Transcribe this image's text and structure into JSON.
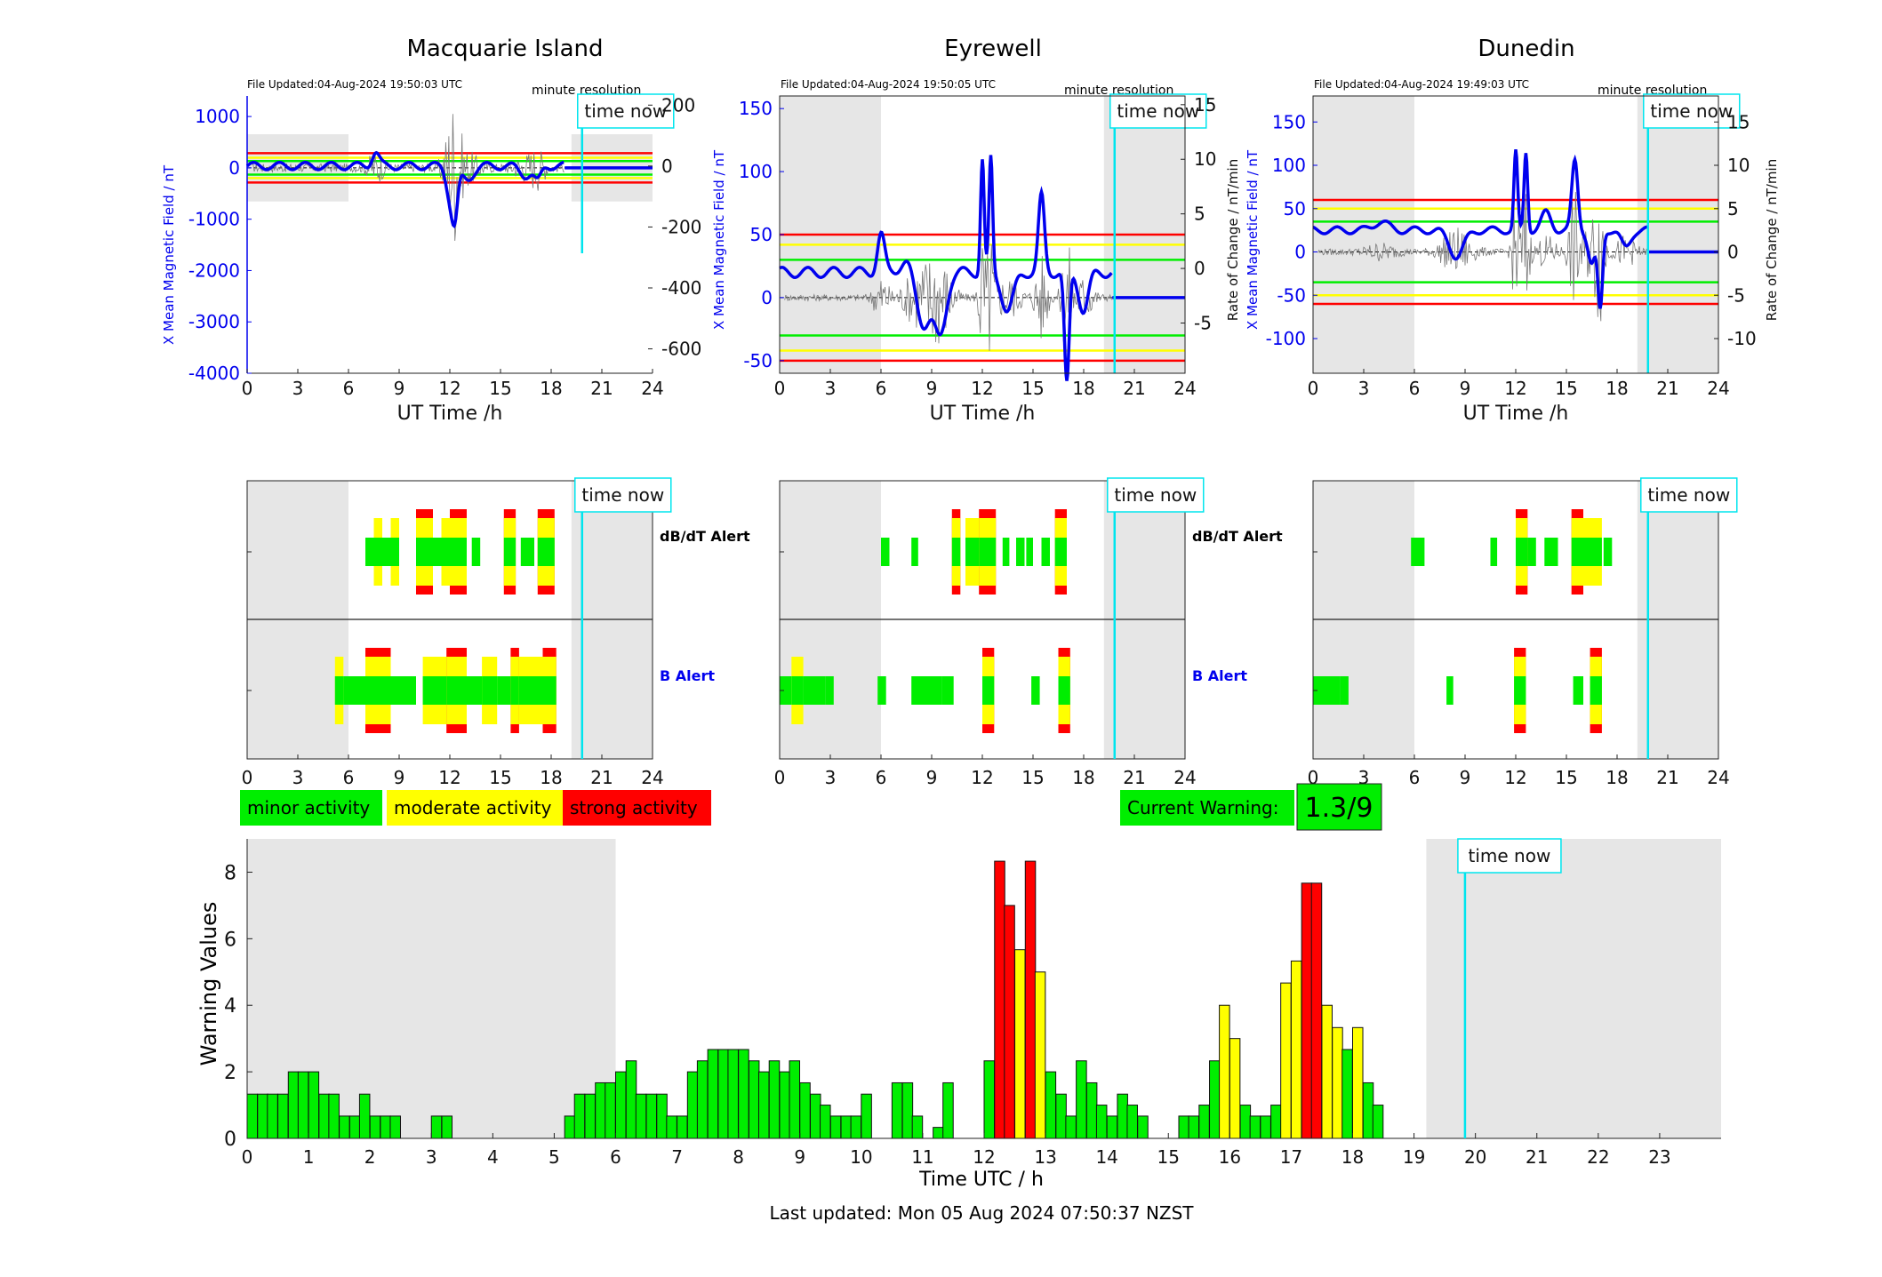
{
  "sites": [
    {
      "name": "Macquarie Island",
      "file_updated": "File Updated:04-Aug-2024 19:50:03 UTC",
      "resolution": "minute resolution",
      "time_now_label": "time now",
      "ylabel_left": "X Mean Magnetic Field / nT",
      "ylabel_right": "",
      "ylim_left": [
        -4000,
        1400
      ],
      "yticks_left": [
        "1000",
        "0",
        "-1000",
        "-2000",
        "-3000",
        "-4000"
      ],
      "ylim_right": [
        -680,
        230
      ],
      "yticks_right": [
        "200",
        "0",
        "-200",
        "-400",
        "-600"
      ],
      "dbdt_alert_label": "dB/dT Alert",
      "b_alert_label": "B Alert",
      "night_shade": [
        [
          0,
          6
        ],
        [
          19.2,
          24
        ]
      ]
    },
    {
      "name": "Eyrewell",
      "file_updated": "File Updated:04-Aug-2024 19:50:05 UTC",
      "resolution": "minute resolution",
      "time_now_label": "time now",
      "ylabel_left": "X Mean Magnetic Field / nT",
      "ylabel_right": "Rate of Change / nT/min",
      "ylim_left": [
        -60,
        160
      ],
      "yticks_left": [
        "150",
        "100",
        "50",
        "0",
        "-50"
      ],
      "ylim_right": [
        -9.6,
        15.8
      ],
      "yticks_right": [
        "15",
        "10",
        "5",
        "0",
        "-5"
      ],
      "dbdt_alert_label": "dB/dT Alert",
      "b_alert_label": "B Alert",
      "night_shade": [
        [
          0,
          6
        ],
        [
          19.2,
          24
        ]
      ]
    },
    {
      "name": "Dunedin",
      "file_updated": "File Updated:04-Aug-2024 19:49:03 UTC",
      "resolution": "minute resolution",
      "time_now_label": "time now",
      "ylabel_left": "X Mean Magnetic Field / nT",
      "ylabel_right": "Rate of Change / nT/min",
      "ylim_left": [
        -140,
        180
      ],
      "yticks_left": [
        "150",
        "100",
        "50",
        "0",
        "-50",
        "-100"
      ],
      "ylim_right": [
        -14,
        18
      ],
      "yticks_right": [
        "15",
        "10",
        "5",
        "0",
        "-5",
        "-10"
      ],
      "dbdt_alert_label": "dB/dT Alert",
      "b_alert_label": "B Alert",
      "night_shade": [
        [
          0,
          6
        ],
        [
          19.2,
          24
        ]
      ]
    }
  ],
  "axes": {
    "site_xticks": [
      "0",
      "3",
      "6",
      "9",
      "12",
      "15",
      "18",
      "21",
      "24"
    ],
    "site_xlabel": "UT Time /h",
    "bottom_xticks": [
      "0",
      "1",
      "2",
      "3",
      "4",
      "5",
      "6",
      "7",
      "8",
      "9",
      "10",
      "11",
      "12",
      "13",
      "14",
      "15",
      "16",
      "17",
      "18",
      "19",
      "20",
      "21",
      "22",
      "23"
    ],
    "bottom_xlabel": "Time UTC / h",
    "bottom_ylabel": "Warning Values",
    "bottom_yticks": [
      "0",
      "2",
      "4",
      "6",
      "8"
    ],
    "time_now_hour": 19.83
  },
  "legend": {
    "minor": "minor activity",
    "moderate": "moderate activity",
    "strong": "strong activity"
  },
  "current_warning": {
    "label": "Current Warning:",
    "value": "1.3/9"
  },
  "last_updated": "Last updated: Mon 05 Aug 2024 07:50:37 NZST",
  "colors": {
    "minor": "#00ee00",
    "moderate": "#ffff00",
    "strong": "#ff0000",
    "night": "#e6e6e6",
    "time_now": "#00e5ee",
    "field_line": "#0000ee"
  },
  "chart_data": [
    {
      "type": "bar",
      "title": "",
      "xlabel": "Time UTC / h",
      "ylabel": "Warning Values",
      "ylim": [
        0,
        9
      ],
      "xlim": [
        0,
        24
      ],
      "bar_width_h": 0.1667,
      "categories": [
        "0.0",
        "0.17",
        "0.33",
        "0.5",
        "0.67",
        "0.83",
        "1.0",
        "1.17",
        "1.33",
        "1.5",
        "1.67",
        "1.83",
        "2.0",
        "2.17",
        "2.33",
        "2.5",
        "2.67",
        "2.83",
        "3.0",
        "3.17",
        "3.33",
        "3.5",
        "3.67",
        "3.83",
        "4.0",
        "4.17",
        "4.33",
        "4.5",
        "4.67",
        "4.83",
        "5.0",
        "5.17",
        "5.33",
        "5.5",
        "5.67",
        "5.83",
        "6.0",
        "6.17",
        "6.33",
        "6.5",
        "6.67",
        "6.83",
        "7.0",
        "7.17",
        "7.33",
        "7.5",
        "7.67",
        "7.83",
        "8.0",
        "8.17",
        "8.33",
        "8.5",
        "8.67",
        "8.83",
        "9.0",
        "9.17",
        "9.33",
        "9.5",
        "9.67",
        "9.83",
        "10.0",
        "10.17",
        "10.33",
        "10.5",
        "10.67",
        "10.83",
        "11.0",
        "11.17",
        "11.33",
        "11.5",
        "11.67",
        "11.83",
        "12.0",
        "12.17",
        "12.33",
        "12.5",
        "12.67",
        "12.83",
        "13.0",
        "13.17",
        "13.33",
        "13.5",
        "13.67",
        "13.83",
        "14.0",
        "14.17",
        "14.33",
        "14.5",
        "14.67",
        "14.83",
        "15.0",
        "15.17",
        "15.33",
        "15.5",
        "15.67",
        "15.83",
        "16.0",
        "16.17",
        "16.33",
        "16.5",
        "16.67",
        "16.83",
        "17.0",
        "17.17",
        "17.33",
        "17.5",
        "17.67",
        "17.83",
        "18.0",
        "18.17",
        "18.33"
      ],
      "values": [
        1.33,
        1.33,
        1.33,
        1.33,
        2,
        2,
        2,
        1.33,
        1.33,
        0.67,
        0.67,
        1.33,
        0.67,
        0.67,
        0.67,
        0,
        0,
        0,
        0.67,
        0.67,
        0,
        0,
        0,
        0,
        0,
        0,
        0,
        0,
        0,
        0,
        0,
        0.67,
        1.33,
        1.33,
        1.67,
        1.67,
        2,
        2.33,
        1.33,
        1.33,
        1.33,
        0.67,
        0.67,
        2,
        2.33,
        2.67,
        2.67,
        2.67,
        2.67,
        2.33,
        2,
        2.33,
        2,
        2.33,
        1.67,
        1.33,
        1,
        0.67,
        0.67,
        0.67,
        1.33,
        0,
        0,
        1.67,
        1.67,
        0.67,
        0,
        0.33,
        1.67,
        0,
        0,
        0,
        2.33,
        8.33,
        7,
        5.67,
        8.33,
        5,
        2,
        1.33,
        0.67,
        2.33,
        1.67,
        1,
        0.67,
        1.33,
        1,
        0.67,
        0,
        0,
        0,
        0.67,
        0.67,
        1,
        2.33,
        4,
        3,
        1,
        0.67,
        0.67,
        1,
        4.67,
        5.33,
        7.67,
        7.67,
        4,
        3.33,
        2.67,
        3.33,
        1.67,
        1
      ],
      "levels": [
        "minor",
        "minor",
        "minor",
        "minor",
        "minor",
        "minor",
        "minor",
        "minor",
        "minor",
        "minor",
        "minor",
        "minor",
        "minor",
        "minor",
        "minor",
        "minor",
        "minor",
        "minor",
        "minor",
        "minor",
        "minor",
        "minor",
        "minor",
        "minor",
        "minor",
        "minor",
        "minor",
        "minor",
        "minor",
        "minor",
        "minor",
        "minor",
        "minor",
        "minor",
        "minor",
        "minor",
        "minor",
        "minor",
        "minor",
        "minor",
        "minor",
        "minor",
        "minor",
        "minor",
        "minor",
        "minor",
        "minor",
        "minor",
        "minor",
        "minor",
        "minor",
        "minor",
        "minor",
        "minor",
        "minor",
        "minor",
        "minor",
        "minor",
        "minor",
        "minor",
        "minor",
        "minor",
        "minor",
        "minor",
        "minor",
        "minor",
        "minor",
        "minor",
        "minor",
        "minor",
        "minor",
        "minor",
        "minor",
        "strong",
        "strong",
        "moderate",
        "strong",
        "moderate",
        "minor",
        "minor",
        "minor",
        "minor",
        "minor",
        "minor",
        "minor",
        "minor",
        "minor",
        "minor",
        "minor",
        "minor",
        "minor",
        "minor",
        "minor",
        "minor",
        "minor",
        "moderate",
        "moderate",
        "minor",
        "minor",
        "minor",
        "minor",
        "moderate",
        "moderate",
        "strong",
        "strong",
        "moderate",
        "moderate",
        "minor",
        "moderate",
        "minor",
        "minor"
      ]
    }
  ]
}
